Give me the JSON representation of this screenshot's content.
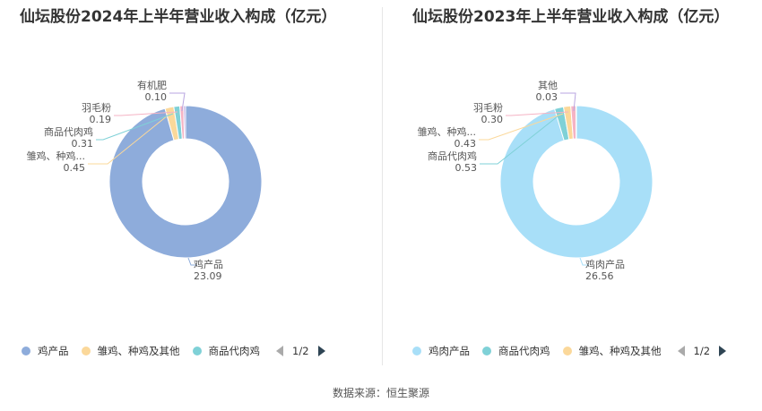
{
  "chart_data": [
    {
      "type": "pie",
      "title": "仙坛股份2024年上半年营业收入构成（亿元）",
      "slices": [
        {
          "label": "鸡产品",
          "value": 23.09,
          "color": "#8eacdb"
        },
        {
          "label": "雏鸡、种鸡...",
          "value": 0.45,
          "color": "#fbd89a"
        },
        {
          "label": "商品代肉鸡",
          "value": 0.31,
          "color": "#7fd1d7"
        },
        {
          "label": "羽毛粉",
          "value": 0.19,
          "color": "#f5b3c4"
        },
        {
          "label": "有机肥",
          "value": 0.1,
          "color": "#b9a6e0"
        }
      ],
      "value_labels": [
        "23.09",
        "0.45",
        "0.31",
        "0.19",
        "0.10"
      ],
      "legend": [
        "鸡产品",
        "雏鸡、种鸡及其他",
        "商品代肉鸡"
      ],
      "legend_colors": [
        "#8eacdb",
        "#fbd89a",
        "#7fd1d7"
      ],
      "pager": "1/2"
    },
    {
      "type": "pie",
      "title": "仙坛股份2023年上半年营业收入构成（亿元）",
      "slices": [
        {
          "label": "鸡肉产品",
          "value": 26.56,
          "color": "#a8dff8"
        },
        {
          "label": "商品代肉鸡",
          "value": 0.53,
          "color": "#7fd1d7"
        },
        {
          "label": "雏鸡、种鸡...",
          "value": 0.43,
          "color": "#fbd89a"
        },
        {
          "label": "羽毛粉",
          "value": 0.3,
          "color": "#f5b3c4"
        },
        {
          "label": "其他",
          "value": 0.03,
          "color": "#b9a6e0"
        }
      ],
      "value_labels": [
        "26.56",
        "0.53",
        "0.43",
        "0.30",
        "0.03"
      ],
      "legend": [
        "鸡肉产品",
        "商品代肉鸡",
        "雏鸡、种鸡及其他"
      ],
      "legend_colors": [
        "#a8dff8",
        "#7fd1d7",
        "#fbd89a"
      ],
      "pager": "1/2"
    }
  ],
  "source": "数据来源：恒生聚源"
}
